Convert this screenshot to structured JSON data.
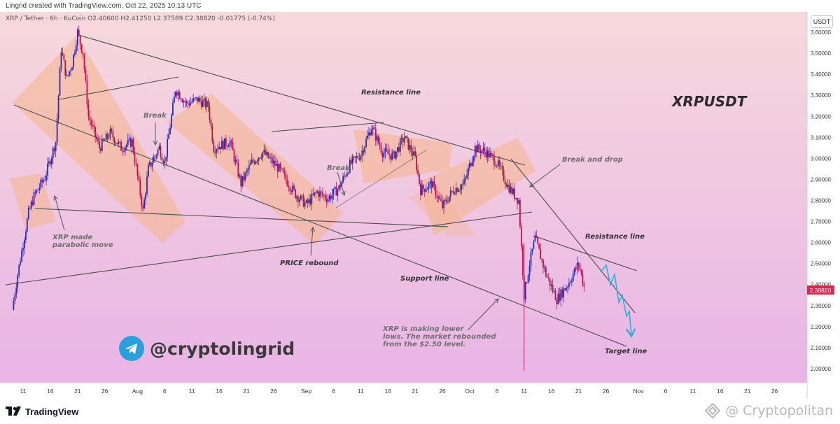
{
  "header": {
    "attribution": "Lingrid created with TradingView.com, Oct 22, 2025 10:13 UTC",
    "legend": "XRP / Tether · 6h · KuCoin  O2.40600  H2.41250  L2.37589  C2.38820  -0.01775 (-0.74%)"
  },
  "symbol": "XRPUSDT",
  "currency": "USDT",
  "badge": {
    "handle": "@cryptolingrid",
    "icon": "telegram-icon",
    "color": "#2a9fde"
  },
  "footer": {
    "logo": "TradingView",
    "watermark": "@ Cryptopolitan"
  },
  "annotations": {
    "resistance_top": "Resistance line",
    "resistance_right": "Resistance line",
    "support": "Support line",
    "target": "Target line",
    "break1": "Break",
    "break2": "Break",
    "break_drop": "Break and drop",
    "price_rebound": "PRICE rebound",
    "parabolic": "XRP made\nparabolic move",
    "lower_lows": "XRP is making lower\nlows. The market rebounded\nfrom the $2.50 level."
  },
  "colors": {
    "bg_top": "#f6d9dc",
    "bg_bottom": "#e9b4e6",
    "channel_fill": "#f6b48a",
    "bull": "#2b2bb5",
    "bear": "#b2174f",
    "line": "#555555",
    "projection": "#27b3d6",
    "price_tag": "#e0254f"
  },
  "chart_data": {
    "type": "candlestick",
    "symbol": "XRP / Tether",
    "interval": "6h",
    "exchange": "KuCoin",
    "ohlc_last": {
      "open": 2.406,
      "high": 2.4125,
      "low": 2.37589,
      "close": 2.3882,
      "change": -0.01775,
      "change_pct": -0.74
    },
    "last_price_label": "2.38820",
    "ylim": [
      1.97,
      3.67
    ],
    "y_ticks": [
      "3.60000",
      "3.50000",
      "3.40000",
      "3.30000",
      "3.20000",
      "3.10000",
      "3.00000",
      "2.90000",
      "2.80000",
      "2.70000",
      "2.60000",
      "2.50000",
      "2.40000",
      "2.30000",
      "2.20000",
      "2.10000",
      "2.00000"
    ],
    "x_ticks": [
      "11",
      "16",
      "21",
      "26",
      "Aug",
      "6",
      "11",
      "16",
      "21",
      "26",
      "Sep",
      "6",
      "11",
      "16",
      "21",
      "26",
      "Oct",
      "6",
      "11",
      "16",
      "21",
      "26",
      "Nov",
      "6",
      "11",
      "16",
      "21",
      "26"
    ],
    "price_path": [
      [
        "Jul 9",
        2.28
      ],
      [
        "Jul 10",
        2.45
      ],
      [
        "Jul 12",
        2.74
      ],
      [
        "Jul 13",
        2.82
      ],
      [
        "Jul 15",
        2.91
      ],
      [
        "Jul 17",
        3.08
      ],
      [
        "Jul 18",
        3.52
      ],
      [
        "Jul 19",
        3.38
      ],
      [
        "Jul 20",
        3.45
      ],
      [
        "Jul 21",
        3.6
      ],
      [
        "Jul 22",
        3.5
      ],
      [
        "Jul 23",
        3.2
      ],
      [
        "Jul 25",
        3.05
      ],
      [
        "Jul 27",
        3.12
      ],
      [
        "Jul 29",
        3.05
      ],
      [
        "Jul 31",
        3.08
      ],
      [
        "Aug 2",
        2.75
      ],
      [
        "Aug 3",
        2.95
      ],
      [
        "Aug 5",
        3.05
      ],
      [
        "Aug 6",
        2.98
      ],
      [
        "Aug 8",
        3.33
      ],
      [
        "Aug 10",
        3.26
      ],
      [
        "Aug 12",
        3.28
      ],
      [
        "Aug 14",
        3.25
      ],
      [
        "Aug 15",
        3.05
      ],
      [
        "Aug 18",
        3.08
      ],
      [
        "Aug 20",
        2.88
      ],
      [
        "Aug 22",
        2.98
      ],
      [
        "Aug 24",
        3.03
      ],
      [
        "Aug 27",
        2.95
      ],
      [
        "Aug 30",
        2.83
      ],
      [
        "Sep 1",
        2.78
      ],
      [
        "Sep 3",
        2.84
      ],
      [
        "Sep 5",
        2.81
      ],
      [
        "Sep 7",
        2.86
      ],
      [
        "Sep 9",
        2.97
      ],
      [
        "Sep 11",
        3.02
      ],
      [
        "Sep 13",
        3.15
      ],
      [
        "Sep 15",
        3.03
      ],
      [
        "Sep 17",
        3.01
      ],
      [
        "Sep 19",
        3.1
      ],
      [
        "Sep 21",
        3.0
      ],
      [
        "Sep 22",
        2.85
      ],
      [
        "Sep 24",
        2.88
      ],
      [
        "Sep 26",
        2.77
      ],
      [
        "Sep 28",
        2.85
      ],
      [
        "Sep 30",
        2.88
      ],
      [
        "Oct 2",
        3.05
      ],
      [
        "Oct 4",
        3.03
      ],
      [
        "Oct 6",
        2.98
      ],
      [
        "Oct 8",
        2.87
      ],
      [
        "Oct 10",
        2.8
      ],
      [
        "Oct 11",
        2.35
      ],
      [
        "Oct 12",
        2.5
      ],
      [
        "Oct 13",
        2.62
      ],
      [
        "Oct 15",
        2.45
      ],
      [
        "Oct 17",
        2.33
      ],
      [
        "Oct 19",
        2.4
      ],
      [
        "Oct 21",
        2.5
      ],
      [
        "Oct 22",
        2.39
      ]
    ]
  }
}
